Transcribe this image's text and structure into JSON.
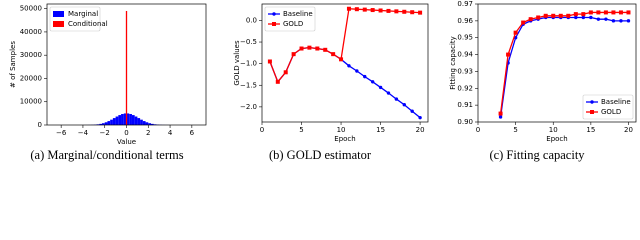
{
  "chart_data": [
    {
      "type": "histogram",
      "caption": "(a) Marginal/conditional terms",
      "x_label": "Value",
      "y_label": "# of Samples",
      "xlim": [
        -7.3,
        7.3
      ],
      "ylim": [
        0,
        52000
      ],
      "xticks": [
        {
          "value": -6,
          "label": "−6"
        },
        {
          "value": -4,
          "label": "−4"
        },
        {
          "value": -2,
          "label": "−2"
        },
        0,
        2,
        4,
        6
      ],
      "yticks": [
        0,
        10000,
        20000,
        30000,
        40000,
        50000
      ],
      "legend": "upper left",
      "series": [
        {
          "name": "Marginal",
          "color": "#0000ff",
          "bins": [
            -4,
            -3.75,
            -3.5,
            -3.25,
            -3,
            -2.75,
            -2.5,
            -2.25,
            -2,
            -1.75,
            -1.5,
            -1.25,
            -1,
            -0.75,
            -0.5,
            -0.25,
            0,
            0.25,
            0.5,
            0.75,
            1,
            1.25,
            1.5,
            1.75,
            2,
            2.25,
            2.5,
            2.75,
            3,
            3.25,
            3.5,
            3.75,
            4
          ],
          "values": [
            10,
            22,
            45,
            89,
            164,
            289,
            486,
            772,
            1170,
            1680,
            2290,
            2970,
            3640,
            4260,
            4720,
            4970,
            4970,
            4720,
            4260,
            3640,
            2970,
            2290,
            1680,
            1170,
            772,
            486,
            289,
            164,
            89,
            45,
            22,
            10
          ]
        },
        {
          "name": "Conditional",
          "color": "#ff0000",
          "bins": [
            -0.06,
            0.06
          ],
          "values": [
            49000
          ]
        }
      ]
    },
    {
      "type": "line",
      "caption": "(b) GOLD estimator",
      "x_label": "Epoch",
      "y_label": "GOLD values",
      "xlim": [
        0,
        21
      ],
      "ylim": [
        -2.35,
        0.38
      ],
      "xticks": [
        0,
        5,
        10,
        15,
        20
      ],
      "yticks": [
        {
          "value": 0,
          "label": "0.0"
        },
        {
          "value": -0.5,
          "label": "−0.5"
        },
        {
          "value": -1,
          "label": "−1.0"
        },
        {
          "value": -1.5,
          "label": "−1.5"
        },
        {
          "value": -2,
          "label": "−2.0"
        }
      ],
      "legend": "upper left",
      "x": [
        1,
        2,
        3,
        4,
        5,
        6,
        7,
        8,
        9,
        10,
        11,
        12,
        13,
        14,
        15,
        16,
        17,
        18,
        19,
        20
      ],
      "series": [
        {
          "name": "Baseline",
          "color": "#0000ff",
          "marker": "circle",
          "values": [
            -0.95,
            -1.42,
            -1.2,
            -0.78,
            -0.65,
            -0.63,
            -0.65,
            -0.68,
            -0.78,
            -0.9,
            -1.05,
            -1.17,
            -1.3,
            -1.42,
            -1.55,
            -1.68,
            -1.82,
            -1.95,
            -2.1,
            -2.25
          ]
        },
        {
          "name": "GOLD",
          "color": "#ff0000",
          "marker": "square",
          "values": [
            -0.95,
            -1.42,
            -1.2,
            -0.78,
            -0.65,
            -0.63,
            -0.65,
            -0.68,
            -0.78,
            -0.9,
            0.27,
            0.26,
            0.25,
            0.24,
            0.23,
            0.22,
            0.21,
            0.2,
            0.19,
            0.18
          ]
        }
      ]
    },
    {
      "type": "line",
      "caption": "(c) Fitting capacity",
      "x_label": "Epoch",
      "y_label": "Fitting capacity",
      "xlim": [
        0,
        21
      ],
      "ylim": [
        0.9,
        0.97
      ],
      "xticks": [
        0,
        5,
        10,
        15,
        20
      ],
      "yticks": [
        {
          "value": 0.9,
          "label": "0.90"
        },
        0.91,
        0.92,
        0.93,
        0.94,
        0.95,
        0.96,
        0.97
      ],
      "legend": "lower right",
      "x": [
        3,
        4,
        5,
        6,
        7,
        8,
        9,
        10,
        11,
        12,
        13,
        14,
        15,
        16,
        17,
        18,
        19,
        20
      ],
      "series": [
        {
          "name": "Baseline",
          "color": "#0000ff",
          "marker": "circle",
          "values": [
            0.903,
            0.935,
            0.95,
            0.958,
            0.96,
            0.961,
            0.962,
            0.962,
            0.962,
            0.962,
            0.962,
            0.962,
            0.962,
            0.961,
            0.961,
            0.96,
            0.96,
            0.96
          ]
        },
        {
          "name": "GOLD",
          "color": "#ff0000",
          "marker": "square",
          "values": [
            0.905,
            0.94,
            0.953,
            0.959,
            0.961,
            0.962,
            0.963,
            0.963,
            0.963,
            0.963,
            0.964,
            0.964,
            0.965,
            0.965,
            0.965,
            0.965,
            0.965,
            0.965
          ]
        }
      ]
    }
  ]
}
